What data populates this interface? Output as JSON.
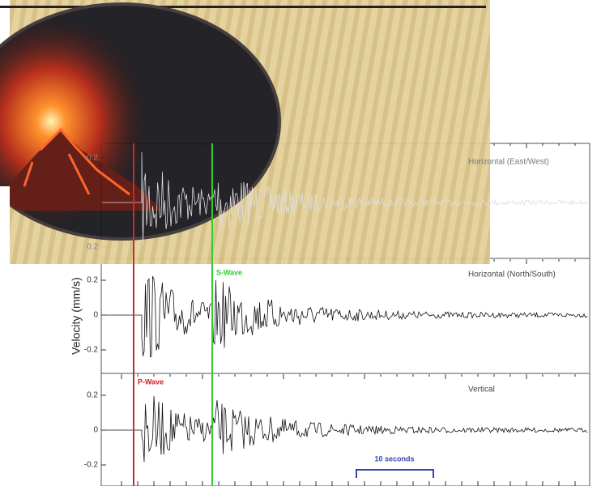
{
  "y_axis_label": "Velocity (mm/s)",
  "panels": [
    {
      "label": "Horizontal (East/West)",
      "ticks": [
        "0.2",
        "0.2"
      ]
    },
    {
      "label": "Horizontal (North/South)",
      "ticks": [
        "0.2",
        "0",
        "-0.2"
      ]
    },
    {
      "label": "Vertical",
      "ticks": [
        "0.2",
        "0",
        "-0.2"
      ]
    }
  ],
  "s_wave": "S-Wave",
  "p_wave": "P-Wave",
  "scale_bar": "10 seconds"
}
